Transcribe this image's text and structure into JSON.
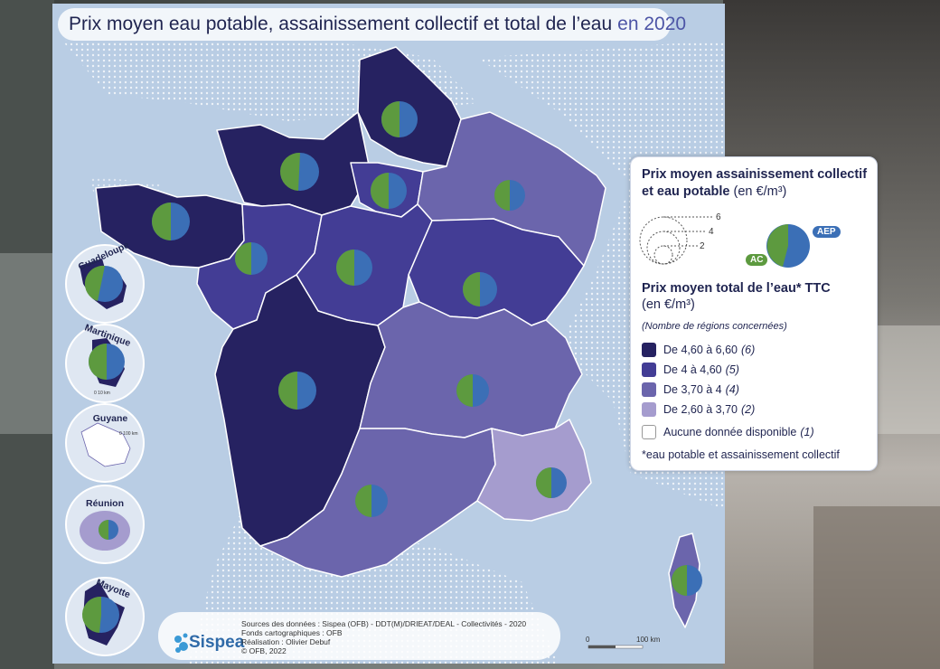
{
  "title": {
    "main": "Prix moyen eau potable, assainissement collectif et total de l’eau",
    "year": "en 2020"
  },
  "colors": {
    "class1": "#262261",
    "class2": "#433d95",
    "class3": "#6b65ac",
    "class4": "#a59cce",
    "ac": "#5d9a3f",
    "aep": "#3b6fb6",
    "sea": "#b9cde4"
  },
  "insets": [
    {
      "name": "Guadeloupe",
      "value_class": 2
    },
    {
      "name": "Martinique",
      "value_class": 2
    },
    {
      "name": "Guyane",
      "value_class": 0
    },
    {
      "name": "Réunion",
      "value_class": 4
    },
    {
      "name": "Mayotte",
      "value_class": 1
    }
  ],
  "inset_scales": {
    "guadeloupe": "0   10 km",
    "martinique": "0   10 km",
    "guyane": "0   100 km",
    "mayotte": "0   5 km"
  },
  "legend": {
    "title1": "Prix moyen assainissement collectif et eau potable",
    "unit1": "(en €/m³)",
    "size_ticks": [
      "6",
      "4",
      "2"
    ],
    "tag_ac": "AC",
    "tag_aep": "AEP",
    "title2": "Prix moyen total de l’eau* TTC",
    "unit2": "(en €/m³)",
    "subtitle": "(Nombre de régions concernées)",
    "classes": [
      {
        "label": "De 4,60 à 6,60",
        "count": "(6)",
        "color": "#262261"
      },
      {
        "label": "De 4 à 4,60",
        "count": "(5)",
        "color": "#433d95"
      },
      {
        "label": "De 3,70 à 4",
        "count": "(4)",
        "color": "#6b65ac"
      },
      {
        "label": "De 2,60 à 3,70",
        "count": "(2)",
        "color": "#a59cce"
      },
      {
        "label": "Aucune donnée disponible",
        "count": "(1)",
        "color": "#ffffff"
      }
    ],
    "note": "*eau potable et assainissement collectif"
  },
  "credits": {
    "logo": "Sispea",
    "line1": "Sources des données : Sispea (OFB) - DDT(M)/DRIEAT/DEAL - Collectivités - 2020",
    "line2": "Fonds cartographiques : OFB",
    "line3": "Réalisation : Olivier Debuf",
    "line4": "© OFB, 2022"
  },
  "scale": {
    "zero": "0",
    "max": "100 km"
  }
}
